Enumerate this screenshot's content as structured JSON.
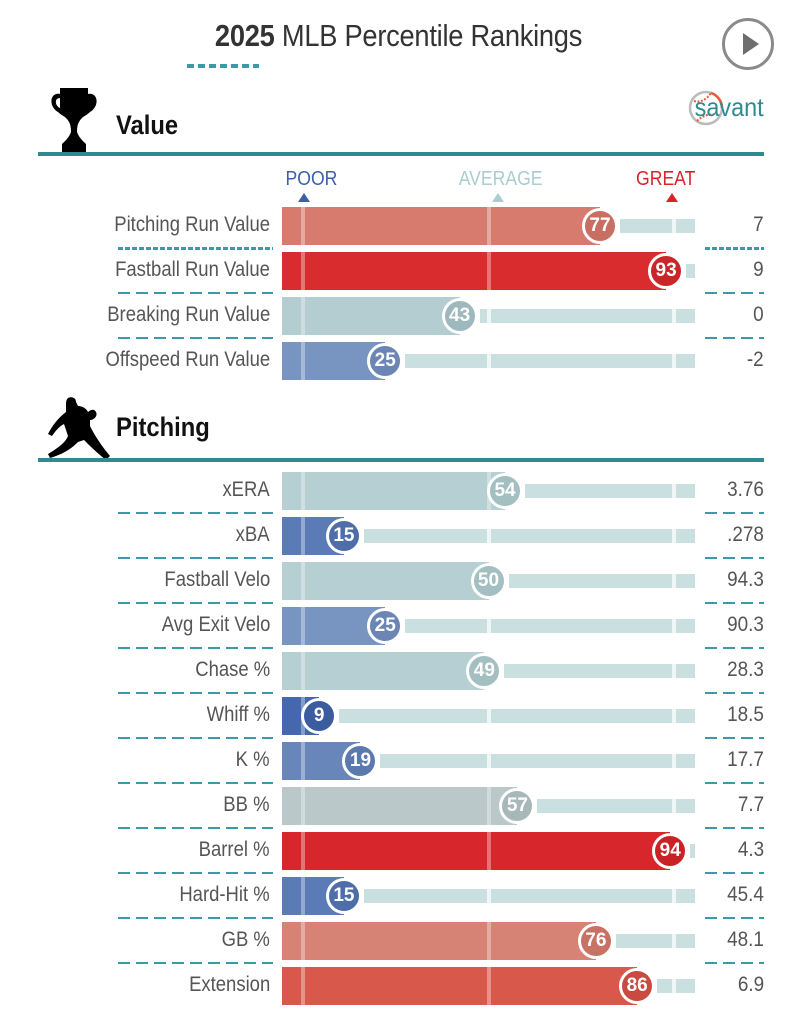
{
  "header": {
    "title_year": "2025",
    "title_rest": "MLB Percentile Rankings",
    "play_button": "play-icon"
  },
  "scale": {
    "poor": "POOR",
    "average": "AVERAGE",
    "great": "GREAT",
    "poor_color": "#3b5fa8",
    "average_color": "#a9cdd0",
    "great_color": "#d8232a"
  },
  "sections": {
    "value": {
      "label": "Value",
      "icon": "trophy-icon",
      "brand": "savant"
    },
    "pitching": {
      "label": "Pitching",
      "icon": "pitcher-icon"
    }
  },
  "chart_data": {
    "type": "bar",
    "title": "2025 MLB Percentile Rankings",
    "xlabel": "Percentile",
    "xlim": [
      0,
      100
    ],
    "scale_labels": [
      "POOR",
      "AVERAGE",
      "GREAT"
    ],
    "groups": [
      {
        "name": "Value",
        "rows": [
          {
            "metric": "Pitching Run Value",
            "percentile": 77,
            "value": "7",
            "color": "#d67b6e",
            "circle": "#c86e62"
          },
          {
            "metric": "Fastball Run Value",
            "percentile": 93,
            "value": "9",
            "color": "#d82c2e",
            "circle": "#c9262a"
          },
          {
            "metric": "Breaking Run Value",
            "percentile": 43,
            "value": "0",
            "color": "#b3cdd1",
            "circle": "#9eb9bd"
          },
          {
            "metric": "Offspeed Run Value",
            "percentile": 25,
            "value": "-2",
            "color": "#7894c0",
            "circle": "#6b86b4"
          }
        ]
      },
      {
        "name": "Pitching",
        "rows": [
          {
            "metric": "xERA",
            "percentile": 54,
            "value": "3.76",
            "color": "#b6cfd2",
            "circle": "#a3bfc2"
          },
          {
            "metric": "xBA",
            "percentile": 15,
            "value": ".278",
            "color": "#5b7bb6",
            "circle": "#4f6ea9"
          },
          {
            "metric": "Fastball Velo",
            "percentile": 50,
            "value": "94.3",
            "color": "#b6cfd2",
            "circle": "#a3bfc2"
          },
          {
            "metric": "Avg Exit Velo",
            "percentile": 25,
            "value": "90.3",
            "color": "#7894c0",
            "circle": "#6b86b4"
          },
          {
            "metric": "Chase %",
            "percentile": 49,
            "value": "28.3",
            "color": "#b6cfd2",
            "circle": "#a3bfc2"
          },
          {
            "metric": "Whiff %",
            "percentile": 9,
            "value": "18.5",
            "color": "#4467ad",
            "circle": "#3b5c9f"
          },
          {
            "metric": "K %",
            "percentile": 19,
            "value": "17.7",
            "color": "#6986bb",
            "circle": "#5c79ad"
          },
          {
            "metric": "BB %",
            "percentile": 57,
            "value": "7.7",
            "color": "#bac8c9",
            "circle": "#a8b8b9"
          },
          {
            "metric": "Barrel %",
            "percentile": 94,
            "value": "4.3",
            "color": "#d8272c",
            "circle": "#c82227"
          },
          {
            "metric": "Hard-Hit %",
            "percentile": 15,
            "value": "45.4",
            "color": "#5b7bb6",
            "circle": "#4f6ea9"
          },
          {
            "metric": "GB %",
            "percentile": 76,
            "value": "48.1",
            "color": "#d68274",
            "circle": "#c87266"
          },
          {
            "metric": "Extension",
            "percentile": 86,
            "value": "6.9",
            "color": "#d9584c",
            "circle": "#c94a40"
          }
        ]
      }
    ]
  }
}
